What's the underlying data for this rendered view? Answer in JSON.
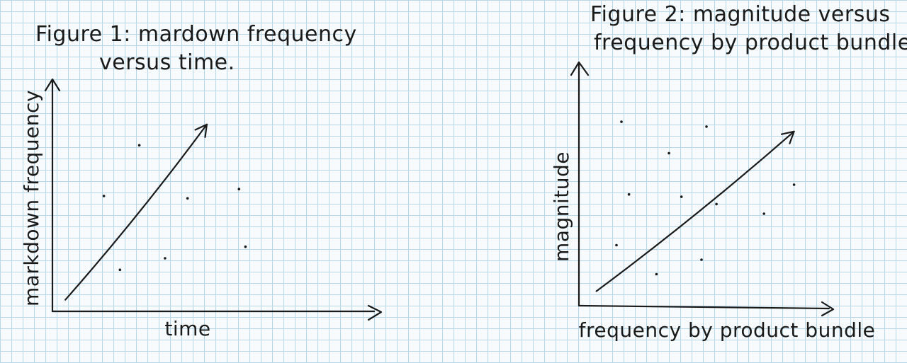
{
  "chart_data": [
    {
      "type": "scatter",
      "title_line1": "Figure 1: mardown frequency",
      "title_line2": "versus time.",
      "xlabel": "time",
      "ylabel": "markdown frequency",
      "grid": false,
      "trend": "increasing",
      "points": [
        {
          "x": 0.27,
          "y": 0.72
        },
        {
          "x": 0.16,
          "y": 0.5
        },
        {
          "x": 0.42,
          "y": 0.49
        },
        {
          "x": 0.58,
          "y": 0.53
        },
        {
          "x": 0.35,
          "y": 0.23
        },
        {
          "x": 0.21,
          "y": 0.18
        },
        {
          "x": 0.6,
          "y": 0.28
        }
      ],
      "trend_line": {
        "x": [
          0.04,
          0.48
        ],
        "y": [
          0.05,
          0.81
        ]
      }
    },
    {
      "type": "scatter",
      "title_line1": "Figure 2: magnitude versus",
      "title_line2": "frequency by product bundle.",
      "xlabel": "frequency by product bundle",
      "ylabel": "magnitude",
      "grid": false,
      "trend": "increasing",
      "points": [
        {
          "x": 0.17,
          "y": 0.76
        },
        {
          "x": 0.51,
          "y": 0.74
        },
        {
          "x": 0.36,
          "y": 0.63
        },
        {
          "x": 0.2,
          "y": 0.46
        },
        {
          "x": 0.41,
          "y": 0.45
        },
        {
          "x": 0.55,
          "y": 0.42
        },
        {
          "x": 0.74,
          "y": 0.38
        },
        {
          "x": 0.86,
          "y": 0.5
        },
        {
          "x": 0.15,
          "y": 0.25
        },
        {
          "x": 0.31,
          "y": 0.13
        },
        {
          "x": 0.49,
          "y": 0.19
        }
      ],
      "trend_line": {
        "x": [
          0.07,
          0.86
        ],
        "y": [
          0.06,
          0.72
        ]
      }
    }
  ]
}
